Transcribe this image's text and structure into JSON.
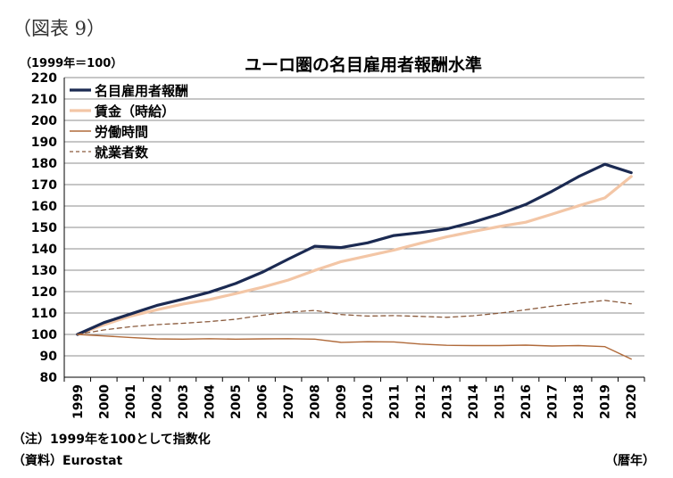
{
  "figure_label": "（図表 9）",
  "unit_label": "（1999年＝100）",
  "note": "（注）1999年を100として指数化",
  "source": "（資料）Eurostat",
  "x_unit": "（暦年）",
  "chart_data": {
    "type": "line",
    "title": "ユーロ圏の名目雇用者報酬水準",
    "xlabel": "",
    "ylabel": "",
    "ylim": [
      80,
      220
    ],
    "yticks": [
      80,
      90,
      100,
      110,
      120,
      130,
      140,
      150,
      160,
      170,
      180,
      190,
      200,
      210,
      220
    ],
    "grid": true,
    "legend": "top-left",
    "x": [
      "1999",
      "2000",
      "2001",
      "2002",
      "2003",
      "2004",
      "2005",
      "2006",
      "2007",
      "2008",
      "2009",
      "2010",
      "2011",
      "2012",
      "2013",
      "2014",
      "2015",
      "2016",
      "2017",
      "2018",
      "2019",
      "2020"
    ],
    "series": [
      {
        "name": "名目雇用者報酬",
        "color": "#1b2a52",
        "style": "solid-thick",
        "values": [
          100,
          105.5,
          109.5,
          113.5,
          116.5,
          119.7,
          123.8,
          129,
          135.2,
          141.2,
          140.6,
          142.8,
          146.2,
          147.6,
          149.3,
          152.4,
          156.2,
          160.7,
          166.9,
          173.7,
          179.5,
          175.6
        ]
      },
      {
        "name": "賃金（時給）",
        "color": "#f3c6a6",
        "style": "solid-thick",
        "values": [
          100,
          104.5,
          108.5,
          111.5,
          114.2,
          116.3,
          119.1,
          122,
          125.4,
          129.9,
          134,
          136.7,
          139.4,
          142.6,
          145.6,
          148.1,
          150.4,
          152.4,
          156.2,
          160.1,
          163.8,
          173.8
        ]
      },
      {
        "name": "労働時間",
        "color": "#b06a3a",
        "style": "solid-thin",
        "values": [
          100,
          99.3,
          98.6,
          97.9,
          97.8,
          98,
          97.8,
          97.9,
          98,
          97.8,
          96.3,
          96.6,
          96.5,
          95.5,
          94.9,
          94.8,
          94.8,
          95,
          94.6,
          94.8,
          94.3,
          88.5
        ]
      },
      {
        "name": "就業者数",
        "color": "#8a5a3c",
        "style": "dashed",
        "values": [
          100,
          102.1,
          103.6,
          104.6,
          105.2,
          106,
          107.1,
          108.9,
          110.4,
          111.2,
          109.3,
          108.6,
          108.8,
          108.4,
          108,
          108.7,
          109.9,
          111.5,
          113.2,
          114.6,
          115.9,
          114.3
        ]
      }
    ]
  }
}
